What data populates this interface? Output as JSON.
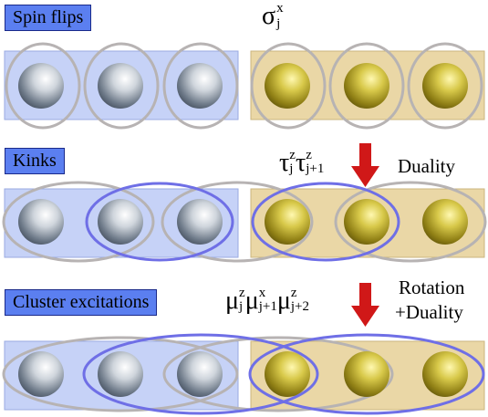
{
  "rows": [
    {
      "label": "Spin flips",
      "operator": {
        "symbol": "σ",
        "sub": "j",
        "sup": "x"
      }
    },
    {
      "label": "Kinks",
      "operator_terms": [
        {
          "symbol": "τ",
          "sub": "j",
          "sup": "z"
        },
        {
          "symbol": "τ",
          "sub": "j+1",
          "sup": "z"
        }
      ],
      "side_text": "Duality"
    },
    {
      "label": "Cluster excitations",
      "operator_terms": [
        {
          "symbol": "μ",
          "sub": "j",
          "sup": "z"
        },
        {
          "symbol": "μ",
          "sub": "j+1",
          "sup": "x"
        },
        {
          "symbol": "μ",
          "sub": "j+2",
          "sup": "z"
        }
      ],
      "side_text_line1": "Rotation",
      "side_text_line2": "+Duality"
    }
  ],
  "colors": {
    "left_panel": "#c6d2f7",
    "right_panel": "#ead7a6",
    "label_box": "#5b7ff0",
    "gray_ellipse": "#b7b3b3",
    "blue_ellipse": "#6f6fe6",
    "arrow": "#d01818"
  }
}
